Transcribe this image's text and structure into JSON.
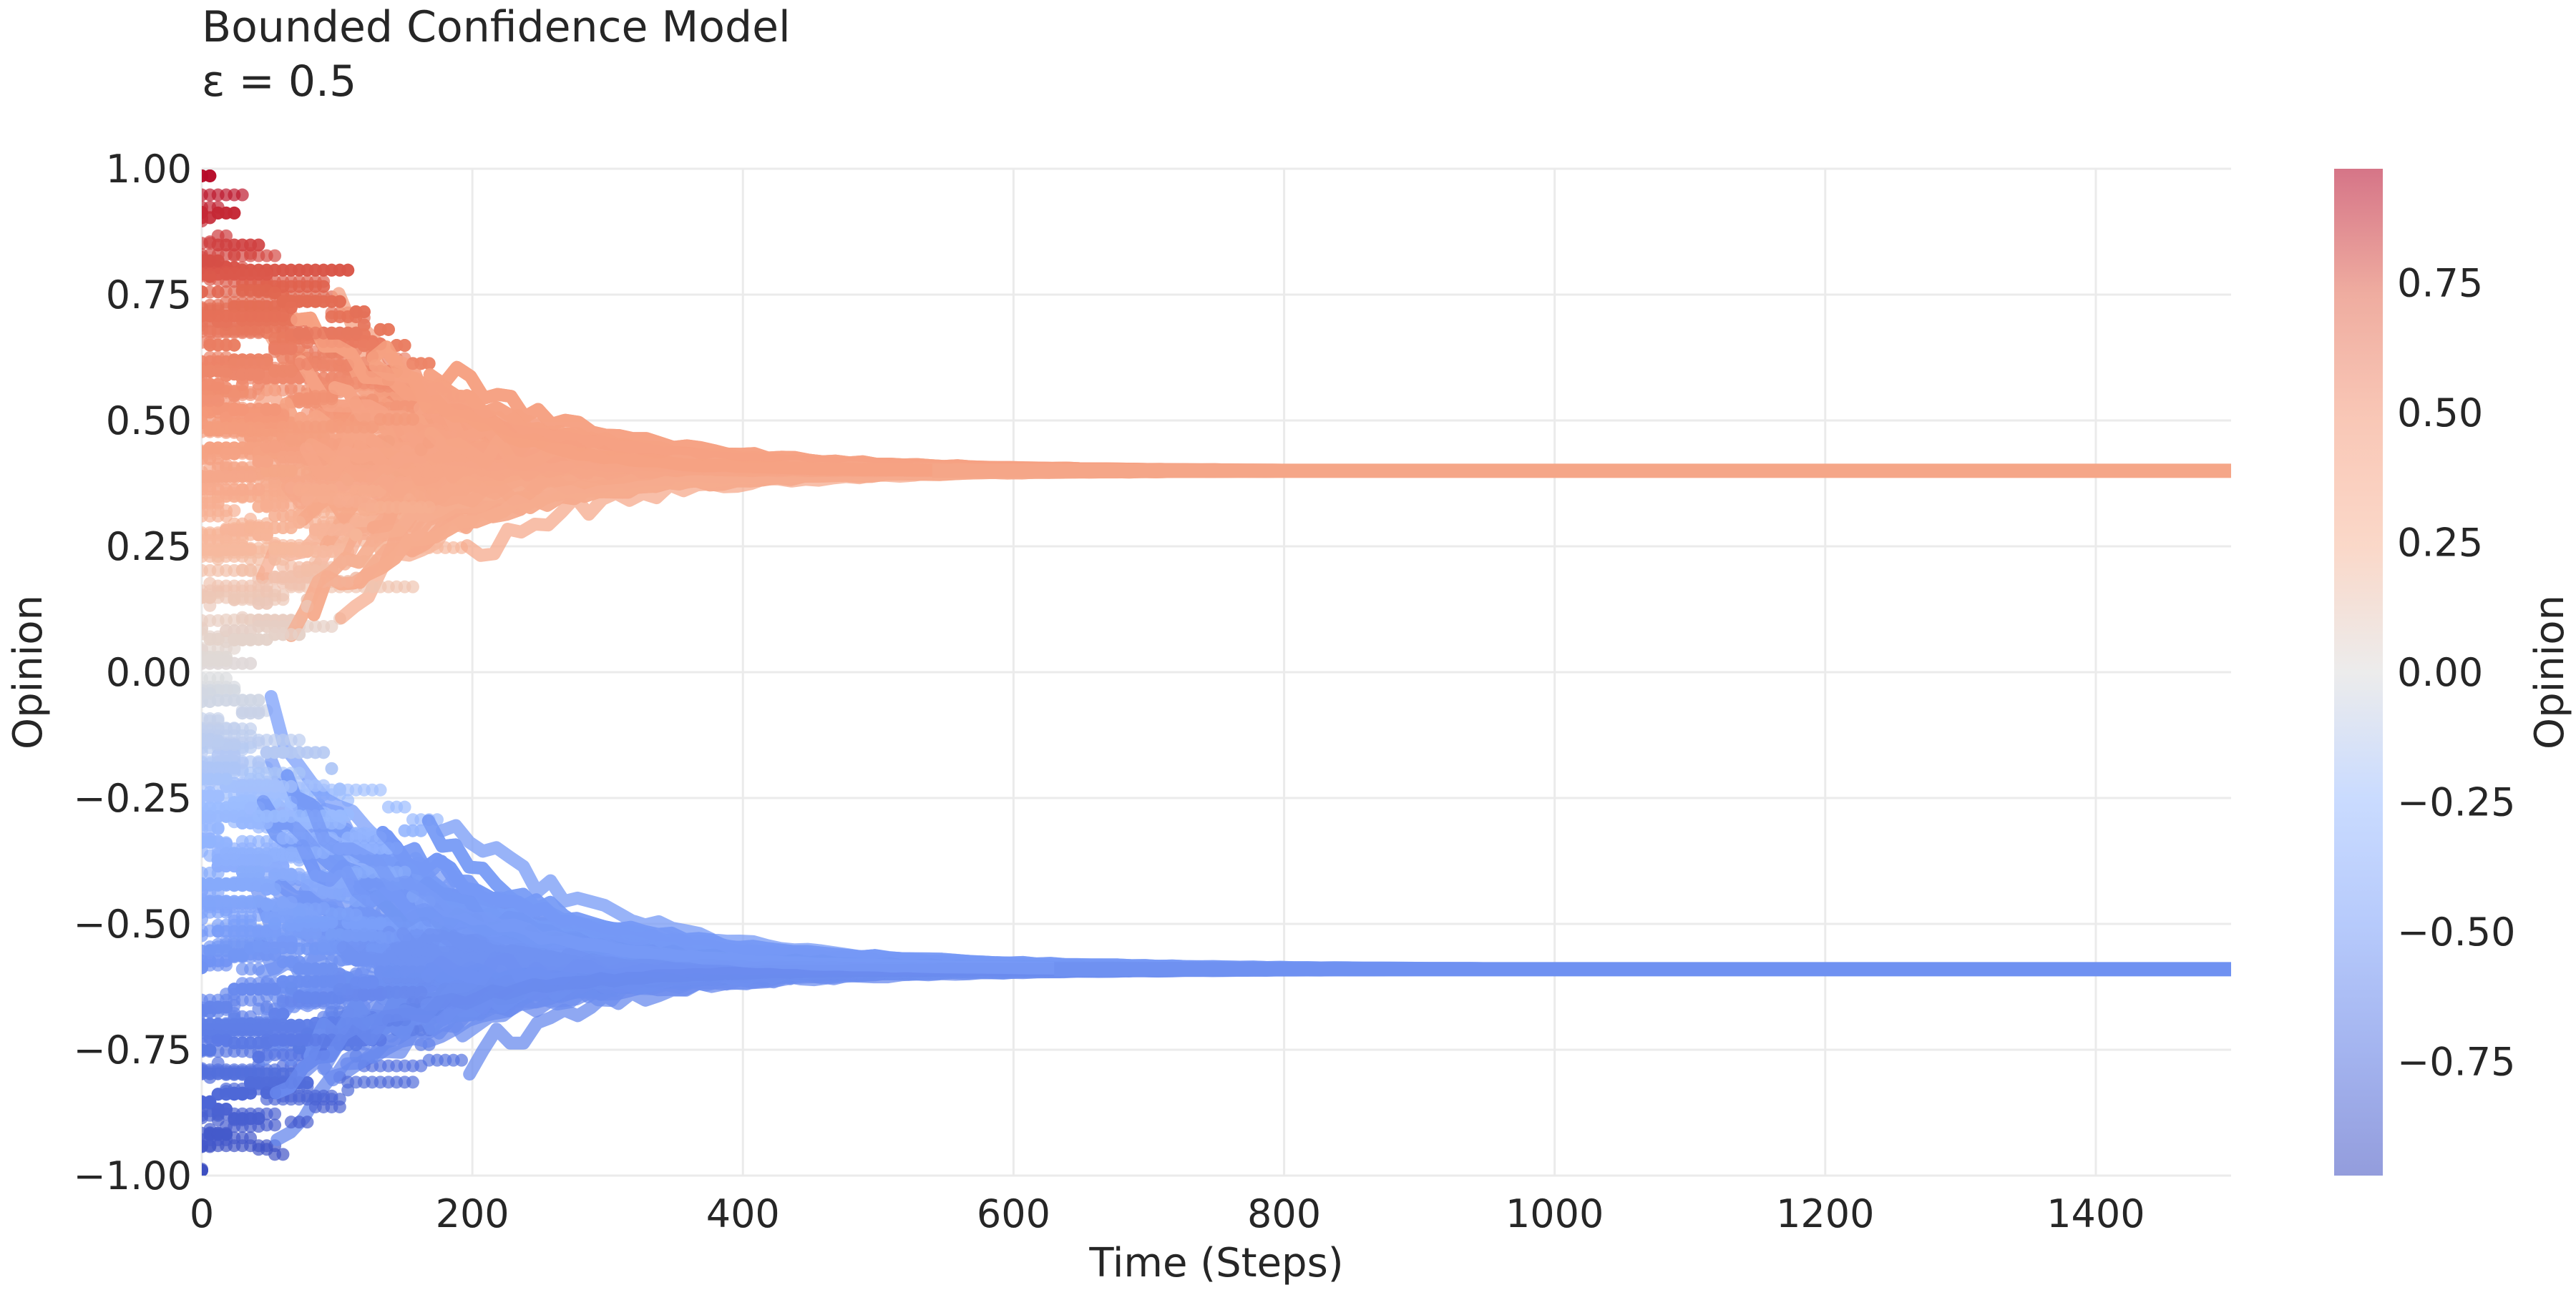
{
  "chart_data": {
    "type": "scatter",
    "title": "Bounded Confidence Model",
    "subtitle": "ε = 0.5",
    "xlabel": "Time (Steps)",
    "ylabel": "Opinion",
    "xlim": [
      0,
      1500
    ],
    "ylim": [
      -1.0,
      1.0
    ],
    "xticks": [
      0,
      200,
      400,
      600,
      800,
      1000,
      1200,
      1400
    ],
    "xtick_labels": [
      "0",
      "200",
      "400",
      "600",
      "800",
      "1000",
      "1200",
      "1400"
    ],
    "yticks": [
      -1.0,
      -0.75,
      -0.5,
      -0.25,
      0.0,
      0.25,
      0.5,
      0.75,
      1.0
    ],
    "ytick_labels": [
      "−1.00",
      "−0.75",
      "−0.50",
      "−0.25",
      "0.00",
      "0.25",
      "0.50",
      "0.75",
      "1.00"
    ],
    "grid": true,
    "clusters": [
      {
        "converged_opinion": 0.4,
        "converged_by_step": 600,
        "initial_range": [
          0.0,
          1.0
        ]
      },
      {
        "converged_opinion": -0.59,
        "converged_by_step": 700,
        "initial_range": [
          -1.0,
          0.0
        ]
      }
    ],
    "colorbar": {
      "label": "Opinion",
      "colormap": "coolwarm",
      "range": [
        -0.97,
        0.97
      ],
      "ticks": [
        -0.75,
        -0.5,
        -0.25,
        0.0,
        0.25,
        0.5,
        0.75
      ],
      "tick_labels": [
        "−0.75",
        "−0.50",
        "−0.25",
        "0.00",
        "0.25",
        "0.50",
        "0.75"
      ]
    }
  }
}
